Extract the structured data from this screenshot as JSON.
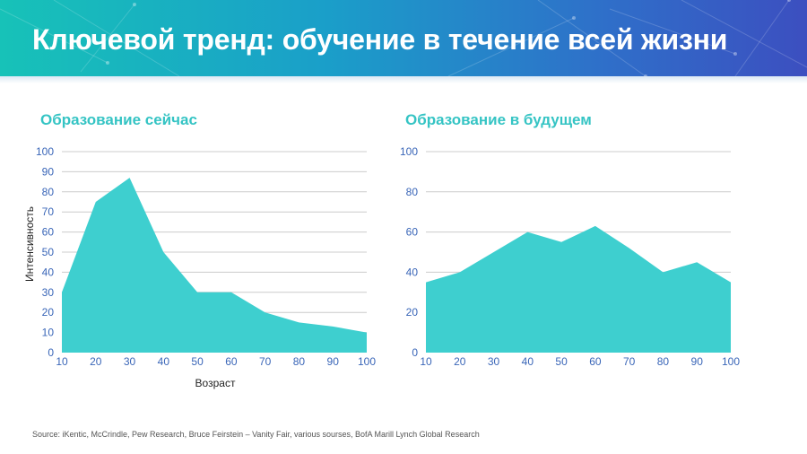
{
  "title": "Ключевой тренд: обучение в течение всей жизни",
  "source": "Source: iKentic, McCrindle, Pew Research, Bruce Feirstein – Vanity Fair, various sourses, BofA Marill Lynch Global Research",
  "colors": {
    "fill": "#3ecfcf",
    "title_accent": "#35c4c4",
    "tick": "#3a66b8",
    "grid": "#cccccc"
  },
  "chart_data": [
    {
      "type": "area",
      "title": "Образование сейчас",
      "xlabel": "Возраст",
      "ylabel": "Интенсивность",
      "x": [
        10,
        20,
        30,
        40,
        50,
        60,
        70,
        80,
        90,
        100
      ],
      "y": [
        30,
        75,
        87,
        50,
        30,
        30,
        20,
        15,
        13,
        10
      ],
      "xticks": [
        "10",
        "20",
        "30",
        "40",
        "50",
        "60",
        "70",
        "80",
        "90",
        "100"
      ],
      "yticks": [
        "0",
        "10",
        "20",
        "30",
        "40",
        "50",
        "60",
        "70",
        "80",
        "90",
        "100"
      ],
      "ylim": [
        0,
        100
      ],
      "grid": true
    },
    {
      "type": "area",
      "title": "Образование в будущем",
      "xlabel": "",
      "ylabel": "",
      "x": [
        10,
        20,
        30,
        40,
        50,
        60,
        70,
        80,
        90,
        100
      ],
      "y": [
        35,
        40,
        50,
        60,
        55,
        63,
        52,
        40,
        45,
        35
      ],
      "xticks": [
        "10",
        "20",
        "30",
        "40",
        "50",
        "60",
        "70",
        "80",
        "90",
        "100"
      ],
      "yticks": [
        "0",
        "20",
        "40",
        "60",
        "80",
        "100"
      ],
      "ylim": [
        0,
        100
      ],
      "grid": true
    }
  ]
}
